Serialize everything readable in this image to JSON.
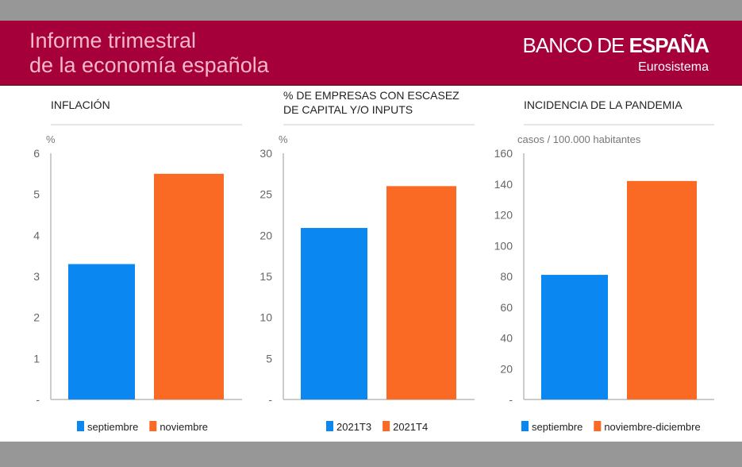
{
  "header": {
    "title_line1": "Informe trimestral",
    "title_line2": "de la economía española",
    "brand_regular": "BANCO DE ",
    "brand_bold": "ESPAÑA",
    "brand_sub": "Eurosistema"
  },
  "colors": {
    "header": "#a5003a",
    "blue": "#0a87f0",
    "orange": "#fb6a24",
    "gray": "#979797"
  },
  "chart_data": [
    {
      "type": "bar",
      "title": "INFLACIÓN",
      "title_lines": [
        "INFLACIÓN"
      ],
      "ylabel": "%",
      "ylim": [
        0,
        6
      ],
      "ticks": [
        "-",
        "1",
        "2",
        "3",
        "4",
        "5",
        "6"
      ],
      "categories": [
        "septiembre",
        "noviembre"
      ],
      "values": [
        3.3,
        5.5
      ]
    },
    {
      "type": "bar",
      "title": "% DE EMPRESAS CON ESCASEZ DE CAPITAL Y/O INPUTS",
      "title_lines": [
        "% DE EMPRESAS CON ESCASEZ",
        "DE CAPITAL Y/O INPUTS"
      ],
      "ylabel": "%",
      "ylim": [
        0,
        30
      ],
      "ticks": [
        "-",
        "5",
        "10",
        "15",
        "20",
        "25",
        "30"
      ],
      "categories": [
        "2021T3",
        "2021T4"
      ],
      "values": [
        20.9,
        26.0
      ]
    },
    {
      "type": "bar",
      "title": "INCIDENCIA DE LA PANDEMIA",
      "title_lines": [
        "INCIDENCIA DE LA PANDEMIA"
      ],
      "ylabel": "casos / 100.000 habitantes",
      "ylim": [
        0,
        160
      ],
      "ticks": [
        "-",
        "20",
        "40",
        "60",
        "80",
        "100",
        "120",
        "140",
        "160"
      ],
      "categories": [
        "septiembre",
        "noviembre-diciembre"
      ],
      "values": [
        81,
        142
      ]
    }
  ]
}
